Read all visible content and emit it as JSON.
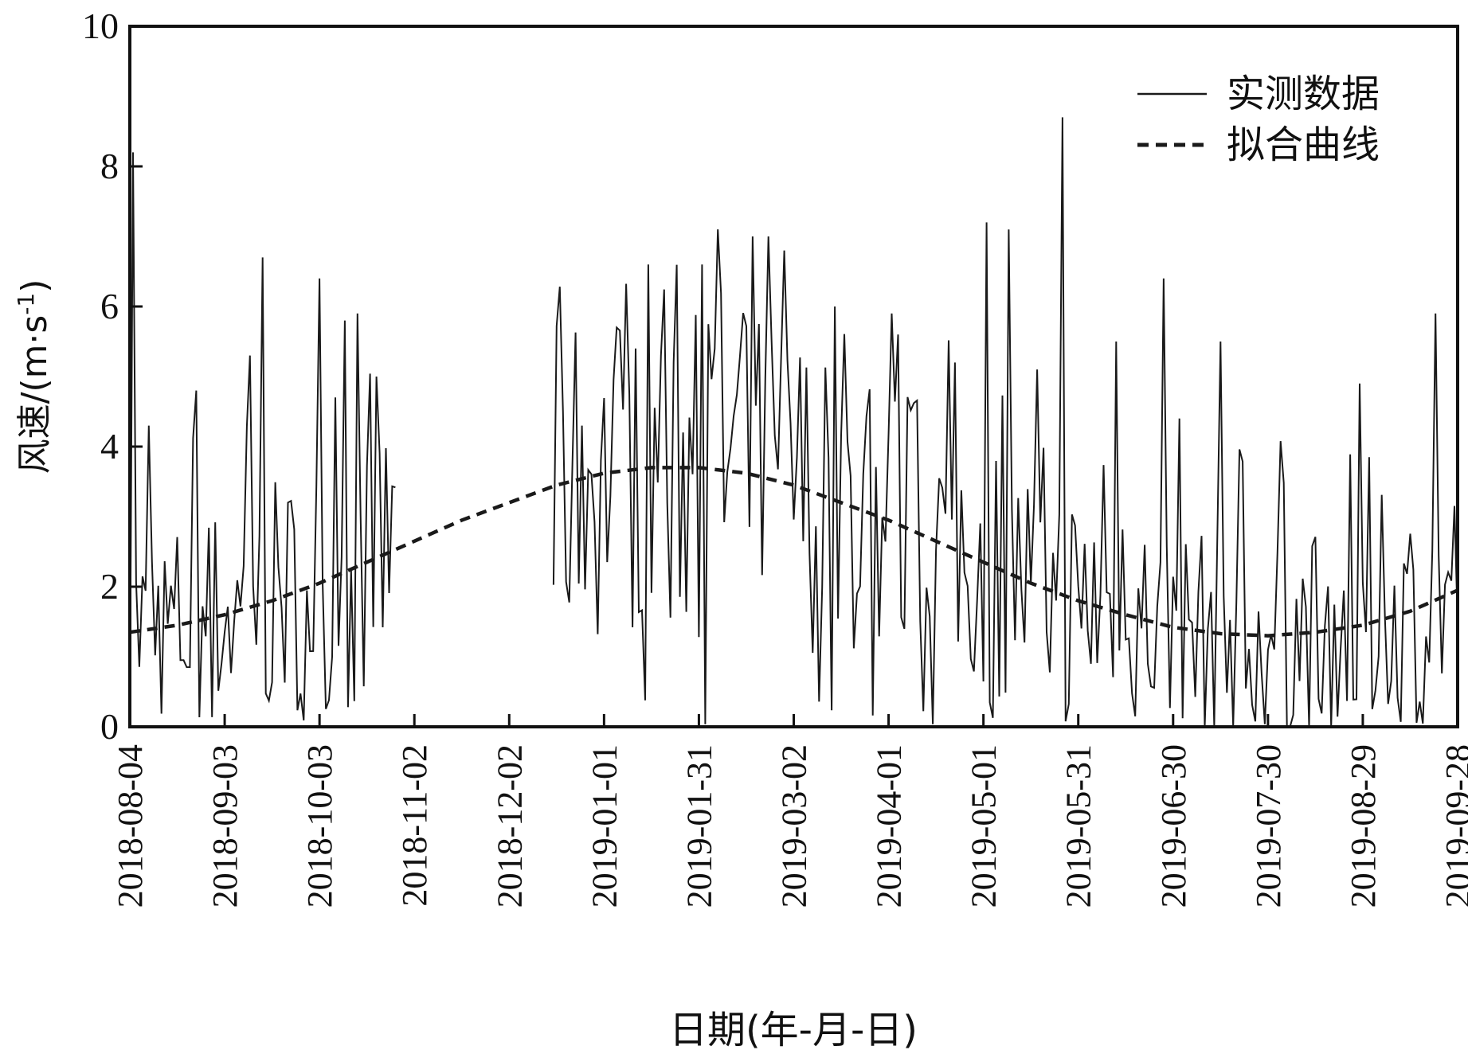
{
  "chart_data": {
    "type": "line",
    "title": "",
    "xlabel": "日期(年-月-日)",
    "ylabel": "风速/(m·s",
    "ylabel_sup": "-1",
    "ylabel_close": ")",
    "x_start": "2018-08-04",
    "x_end": "2019-09-28",
    "xlim": [
      "2018-08-04",
      "2019-09-28"
    ],
    "ylim": [
      0,
      10
    ],
    "y_ticks": [
      0,
      2,
      4,
      6,
      8,
      10
    ],
    "y_tick_labels": [
      "0",
      "2",
      "4",
      "6",
      "8",
      "10"
    ],
    "x_ticks": [
      "2018-08-04",
      "2018-09-03",
      "2018-10-03",
      "2018-11-02",
      "2018-12-02",
      "2019-01-01",
      "2019-01-31",
      "2019-03-02",
      "2019-04-01",
      "2019-05-01",
      "2019-05-31",
      "2019-06-30",
      "2019-07-30",
      "2019-08-29",
      "2019-09-28"
    ],
    "grid": false,
    "legend": "top-right",
    "series": [
      {
        "name": "实测数据",
        "style": "solid",
        "color": "#1a1a1a",
        "gap": [
          "2018-10-27",
          "2018-12-16"
        ],
        "peaks": [
          {
            "x": "2018-08-05",
            "y": 8.2
          },
          {
            "x": "2018-08-10",
            "y": 4.3
          },
          {
            "x": "2018-08-25",
            "y": 4.8
          },
          {
            "x": "2018-09-11",
            "y": 5.3
          },
          {
            "x": "2018-09-15",
            "y": 6.7
          },
          {
            "x": "2018-10-03",
            "y": 6.4
          },
          {
            "x": "2018-10-11",
            "y": 5.8
          },
          {
            "x": "2018-10-15",
            "y": 5.9
          },
          {
            "x": "2018-10-21",
            "y": 5.0
          },
          {
            "x": "2018-12-19",
            "y": 4.5
          },
          {
            "x": "2018-12-25",
            "y": 4.3
          },
          {
            "x": "2019-01-05",
            "y": 5.7
          },
          {
            "x": "2019-01-11",
            "y": 5.4
          },
          {
            "x": "2019-01-15",
            "y": 6.6
          },
          {
            "x": "2019-01-19",
            "y": 5.3
          },
          {
            "x": "2019-02-01",
            "y": 6.6
          },
          {
            "x": "2019-02-06",
            "y": 7.1
          },
          {
            "x": "2019-02-17",
            "y": 7.0
          },
          {
            "x": "2019-02-22",
            "y": 7.0
          },
          {
            "x": "2019-02-27",
            "y": 6.8
          },
          {
            "x": "2019-03-15",
            "y": 6.0
          },
          {
            "x": "2019-04-02",
            "y": 5.9
          },
          {
            "x": "2019-04-04",
            "y": 5.6
          },
          {
            "x": "2019-04-22",
            "y": 5.2
          },
          {
            "x": "2019-05-02",
            "y": 7.2
          },
          {
            "x": "2019-05-09",
            "y": 7.1
          },
          {
            "x": "2019-05-18",
            "y": 5.1
          },
          {
            "x": "2019-05-26",
            "y": 8.7
          },
          {
            "x": "2019-06-12",
            "y": 5.5
          },
          {
            "x": "2019-06-27",
            "y": 6.4
          },
          {
            "x": "2019-07-15",
            "y": 5.5
          },
          {
            "x": "2019-08-28",
            "y": 4.9
          },
          {
            "x": "2019-09-21",
            "y": 5.9
          }
        ]
      },
      {
        "name": "拟合曲线",
        "style": "dashed",
        "color": "#1a1a1a",
        "x": [
          "2018-08-04",
          "2018-08-19",
          "2018-09-03",
          "2018-09-18",
          "2018-10-03",
          "2018-10-18",
          "2018-11-02",
          "2018-11-17",
          "2018-12-02",
          "2018-12-17",
          "2019-01-01",
          "2019-01-16",
          "2019-01-31",
          "2019-02-15",
          "2019-03-02",
          "2019-03-17",
          "2019-04-01",
          "2019-04-16",
          "2019-05-01",
          "2019-05-16",
          "2019-05-31",
          "2019-06-15",
          "2019-06-30",
          "2019-07-15",
          "2019-07-30",
          "2019-08-14",
          "2019-08-29",
          "2019-09-13",
          "2019-09-28"
        ],
        "values": [
          1.35,
          1.45,
          1.6,
          1.8,
          2.05,
          2.35,
          2.65,
          2.95,
          3.2,
          3.45,
          3.62,
          3.7,
          3.7,
          3.62,
          3.45,
          3.2,
          2.95,
          2.65,
          2.35,
          2.05,
          1.8,
          1.6,
          1.42,
          1.33,
          1.3,
          1.35,
          1.45,
          1.65,
          1.95
        ]
      }
    ]
  }
}
